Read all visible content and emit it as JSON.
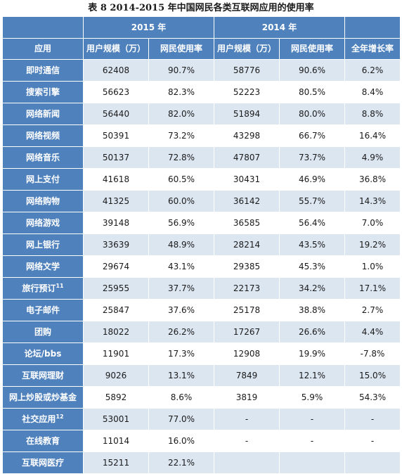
{
  "caption": "表 8   2014-2015 年中国网民各类互联网应用的使用率",
  "header": {
    "year_2015": "2015 年",
    "year_2014": "2014 年",
    "col_app": "应用",
    "col_users_2015": "用户规模（万）",
    "col_rate_2015": "网民使用率",
    "col_users_2014": "用户规模（万）",
    "col_rate_2014": "网民使用率",
    "col_growth": "全年增长率"
  },
  "rows": [
    {
      "app": "即时通信",
      "sup": "",
      "u15": "62408",
      "r15": "90.7%",
      "u14": "58776",
      "r14": "90.6%",
      "g": "6.2%"
    },
    {
      "app": "搜索引擎",
      "sup": "",
      "u15": "56623",
      "r15": "82.3%",
      "u14": "52223",
      "r14": "80.5%",
      "g": "8.4%"
    },
    {
      "app": "网络新闻",
      "sup": "",
      "u15": "56440",
      "r15": "82.0%",
      "u14": "51894",
      "r14": "80.0%",
      "g": "8.8%"
    },
    {
      "app": "网络视频",
      "sup": "",
      "u15": "50391",
      "r15": "73.2%",
      "u14": "43298",
      "r14": "66.7%",
      "g": "16.4%"
    },
    {
      "app": "网络音乐",
      "sup": "",
      "u15": "50137",
      "r15": "72.8%",
      "u14": "47807",
      "r14": "73.7%",
      "g": "4.9%"
    },
    {
      "app": "网上支付",
      "sup": "",
      "u15": "41618",
      "r15": "60.5%",
      "u14": "30431",
      "r14": "46.9%",
      "g": "36.8%"
    },
    {
      "app": "网络购物",
      "sup": "",
      "u15": "41325",
      "r15": "60.0%",
      "u14": "36142",
      "r14": "55.7%",
      "g": "14.3%"
    },
    {
      "app": "网络游戏",
      "sup": "",
      "u15": "39148",
      "r15": "56.9%",
      "u14": "36585",
      "r14": "56.4%",
      "g": "7.0%"
    },
    {
      "app": "网上银行",
      "sup": "",
      "u15": "33639",
      "r15": "48.9%",
      "u14": "28214",
      "r14": "43.5%",
      "g": "19.2%"
    },
    {
      "app": "网络文学",
      "sup": "",
      "u15": "29674",
      "r15": "43.1%",
      "u14": "29385",
      "r14": "45.3%",
      "g": "1.0%"
    },
    {
      "app": "旅行预订",
      "sup": "11",
      "u15": "25955",
      "r15": "37.7%",
      "u14": "22173",
      "r14": "34.2%",
      "g": "17.1%"
    },
    {
      "app": "电子邮件",
      "sup": "",
      "u15": "25847",
      "r15": "37.6%",
      "u14": "25178",
      "r14": "38.8%",
      "g": "2.7%"
    },
    {
      "app": "团购",
      "sup": "",
      "u15": "18022",
      "r15": "26.2%",
      "u14": "17267",
      "r14": "26.6%",
      "g": "4.4%"
    },
    {
      "app": "论坛/bbs",
      "sup": "",
      "u15": "11901",
      "r15": "17.3%",
      "u14": "12908",
      "r14": "19.9%",
      "g": "-7.8%"
    },
    {
      "app": "互联网理财",
      "sup": "",
      "u15": "9026",
      "r15": "13.1%",
      "u14": "7849",
      "r14": "12.1%",
      "g": "15.0%"
    },
    {
      "app": "网上炒股或炒基金",
      "sup": "",
      "u15": "5892",
      "r15": "8.6%",
      "u14": "3819",
      "r14": "5.9%",
      "g": "54.3%"
    },
    {
      "app": "社交应用",
      "sup": "12",
      "u15": "53001",
      "r15": "77.0%",
      "u14": "-",
      "r14": "-",
      "g": "-"
    },
    {
      "app": "在线教育",
      "sup": "",
      "u15": "11014",
      "r15": "16.0%",
      "u14": "-",
      "r14": "-",
      "g": "-"
    },
    {
      "app": "互联网医疗",
      "sup": "",
      "u15": "15211",
      "r15": "22.1%",
      "u14": "",
      "r14": "",
      "g": ""
    }
  ],
  "colors": {
    "header_bg": "#4f81bd",
    "row_alt_bg": "#dce6f1",
    "row_bg": "#ffffff"
  }
}
